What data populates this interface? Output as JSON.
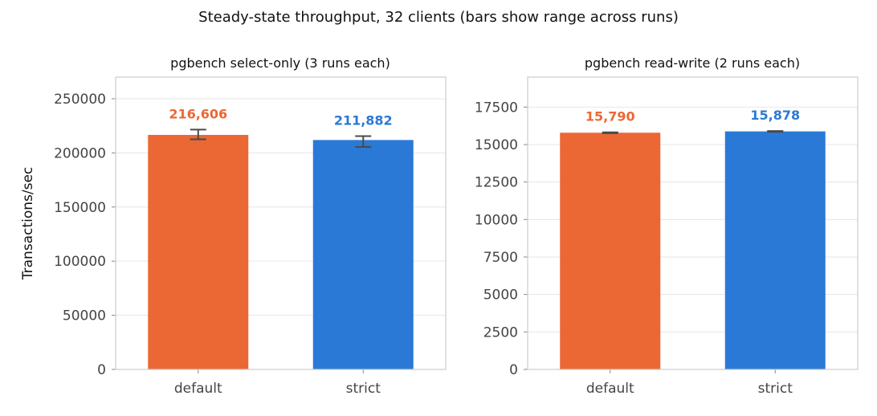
{
  "suptitle": "Steady-state throughput, 32 clients (bars show range across runs)",
  "chart_data": [
    {
      "type": "bar",
      "title": "pgbench select-only (3 runs each)",
      "ylabel": "Transactions/sec",
      "xlabel": "",
      "ylim": [
        0,
        270000
      ],
      "yticks": [
        0,
        50000,
        100000,
        150000,
        200000,
        250000
      ],
      "ytick_labels": [
        "0",
        "50000",
        "100000",
        "150000",
        "200000",
        "250000"
      ],
      "grid": true,
      "categories": [
        "default",
        "strict"
      ],
      "values": [
        216606,
        211882
      ],
      "error_range": [
        [
          212500,
          221500
        ],
        [
          205500,
          215500
        ]
      ],
      "value_labels": [
        "216,606",
        "211,882"
      ],
      "colors": [
        "#eb6834",
        "#2b79d6"
      ]
    },
    {
      "type": "bar",
      "title": "pgbench read-write (2 runs each)",
      "ylabel": "",
      "xlabel": "",
      "ylim": [
        0,
        19500
      ],
      "yticks": [
        0,
        2500,
        5000,
        7500,
        10000,
        12500,
        15000,
        17500
      ],
      "ytick_labels": [
        "0",
        "2500",
        "5000",
        "7500",
        "10000",
        "12500",
        "15000",
        "17500"
      ],
      "grid": true,
      "categories": [
        "default",
        "strict"
      ],
      "values": [
        15790,
        15878
      ],
      "error_range": [
        [
          15760,
          15820
        ],
        [
          15850,
          15906
        ]
      ],
      "value_labels": [
        "15,790",
        "15,878"
      ],
      "colors": [
        "#eb6834",
        "#2b79d6"
      ]
    }
  ]
}
